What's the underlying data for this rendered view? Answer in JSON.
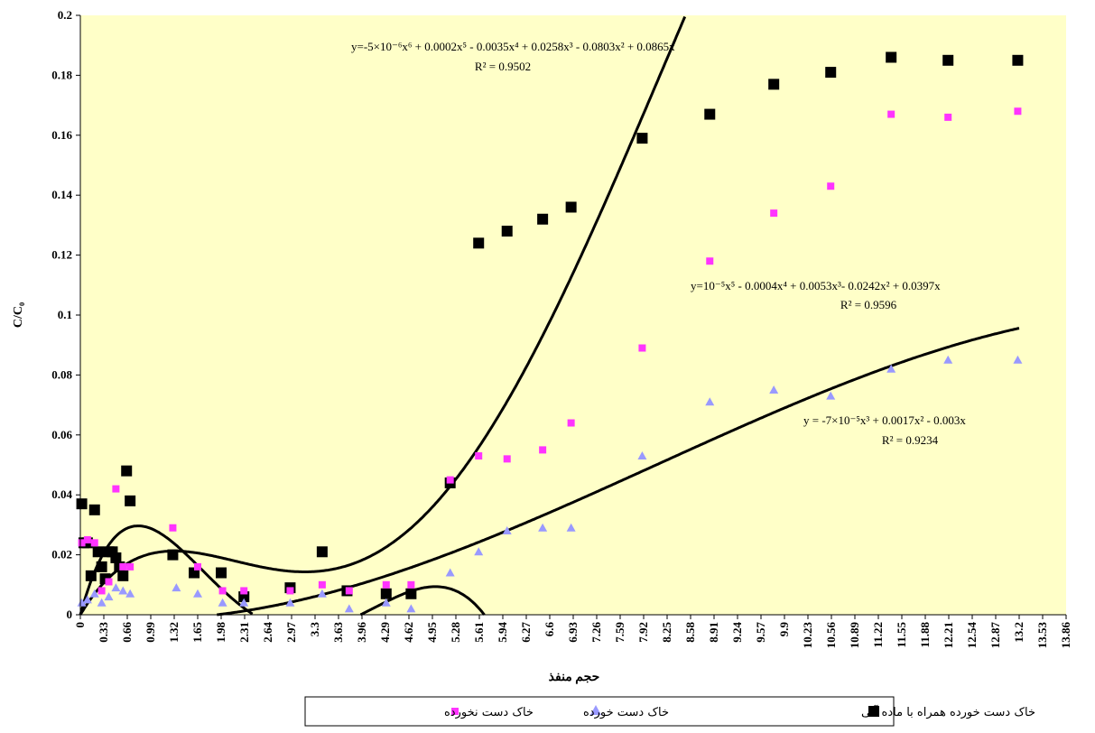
{
  "chart_data": {
    "type": "scatter",
    "xlabel": "حجم منفذ",
    "ylabel": "C/C₀",
    "xlim": [
      0,
      13.86
    ],
    "ylim": [
      0,
      0.2
    ],
    "x_ticks": [
      "0",
      "0.33",
      "0.66",
      "0.99",
      "1.32",
      "1.65",
      "1.98",
      "2.31",
      "2.64",
      "2.97",
      "3.3",
      "3.63",
      "3.96",
      "4.29",
      "4.62",
      "4.95",
      "5.28",
      "5.61",
      "5.94",
      "6.27",
      "6.6",
      "6.93",
      "7.26",
      "7.59",
      "7.92",
      "8.25",
      "8.58",
      "8.91",
      "9.24",
      "9.57",
      "9.9",
      "10.23",
      "10.56",
      "10.89",
      "11.22",
      "11.55",
      "11.88",
      "12.21",
      "12.54",
      "12.87",
      "13.2",
      "13.53",
      "13.86"
    ],
    "y_ticks": [
      "0",
      "0.02",
      "0.04",
      "0.06",
      "0.08",
      "0.1",
      "0.12",
      "0.14",
      "0.16",
      "0.18",
      "0.2"
    ],
    "grid": false,
    "plot_background": "#ffffc8",
    "legend_position": "bottom",
    "series": [
      {
        "name": "خاک دست خورده همراه با ماده آلی",
        "marker": "square",
        "color": "#000000",
        "x": [
          0.02,
          0.05,
          0.1,
          0.15,
          0.2,
          0.25,
          0.3,
          0.35,
          0.4,
          0.45,
          0.5,
          0.55,
          0.6,
          0.65,
          0.7,
          1.3,
          1.6,
          1.98,
          2.3,
          2.95,
          3.4,
          3.75,
          4.3,
          4.65,
          5.2,
          5.6,
          6.0,
          6.5,
          6.9,
          7.9,
          8.85,
          9.75,
          10.55,
          11.4,
          12.2,
          13.18
        ],
        "y": [
          0.037,
          0.024,
          0.024,
          0.013,
          0.035,
          0.021,
          0.016,
          0.012,
          0.021,
          0.021,
          0.019,
          0.016,
          0.013,
          0.048,
          0.038,
          0.02,
          0.014,
          0.014,
          0.006,
          0.009,
          0.021,
          0.008,
          0.007,
          0.007,
          0.044,
          0.124,
          0.128,
          0.132,
          0.136,
          0.159,
          0.167,
          0.177,
          0.181,
          0.186,
          0.185,
          0.185
        ]
      },
      {
        "name": "خاک دست خورده",
        "marker": "triangle",
        "color": "#9999ff",
        "x": [
          0.02,
          0.1,
          0.2,
          0.3,
          0.4,
          0.5,
          0.6,
          0.7,
          1.35,
          1.65,
          2.0,
          2.3,
          2.95,
          3.4,
          3.78,
          4.3,
          4.65,
          5.2,
          5.6,
          6.0,
          6.5,
          6.9,
          7.9,
          8.85,
          9.75,
          10.55,
          11.4,
          12.2,
          13.18
        ],
        "y": [
          0.004,
          0.005,
          0.007,
          0.004,
          0.006,
          0.009,
          0.008,
          0.007,
          0.009,
          0.007,
          0.004,
          0.004,
          0.004,
          0.007,
          0.002,
          0.004,
          0.002,
          0.014,
          0.021,
          0.028,
          0.029,
          0.029,
          0.053,
          0.071,
          0.075,
          0.073,
          0.082,
          0.085,
          0.085
        ]
      },
      {
        "name": "خاک دست نخورده",
        "marker": "square-small",
        "color": "#ff33ff",
        "x": [
          0.02,
          0.1,
          0.2,
          0.3,
          0.4,
          0.5,
          0.6,
          0.7,
          1.3,
          1.65,
          2.0,
          2.3,
          2.95,
          3.4,
          3.78,
          4.3,
          4.65,
          5.2,
          5.6,
          6.0,
          6.5,
          6.9,
          7.9,
          8.85,
          9.75,
          10.55,
          11.4,
          12.2,
          13.18
        ],
        "y": [
          0.024,
          0.025,
          0.024,
          0.008,
          0.011,
          0.042,
          0.016,
          0.016,
          0.029,
          0.016,
          0.008,
          0.008,
          0.008,
          0.01,
          0.008,
          0.01,
          0.01,
          0.045,
          0.053,
          0.052,
          0.055,
          0.064,
          0.089,
          0.118,
          0.134,
          0.143,
          0.167,
          0.166,
          0.168
        ]
      }
    ],
    "trendlines": [
      {
        "series_index": 0,
        "equation": "y=-5×10⁻⁶x⁶ + 0.0002x⁵ - 0.0035x⁴ + 0.0258x³ - 0.0803x² + 0.0865x",
        "r2": "R² = 0.9502",
        "coefficients": [
          0,
          0.0865,
          -0.0803,
          0.0258,
          -0.0035,
          0.0002,
          -5e-06
        ]
      },
      {
        "series_index": 2,
        "equation": "y=10⁻⁵x⁵ - 0.0004x⁴ + 0.0053x³- 0.0242x² + 0.0397x",
        "r2": "R² = 0.9596",
        "coefficients": [
          0,
          0.0397,
          -0.0242,
          0.0053,
          -0.0004,
          1e-05
        ]
      },
      {
        "series_index": 1,
        "equation": "y = -7×10⁻⁵x³ + 0.0017x² - 0.003x",
        "r2": "R² = 0.9234",
        "coefficients": [
          0,
          -0.003,
          0.0017,
          -7e-05
        ]
      }
    ]
  }
}
